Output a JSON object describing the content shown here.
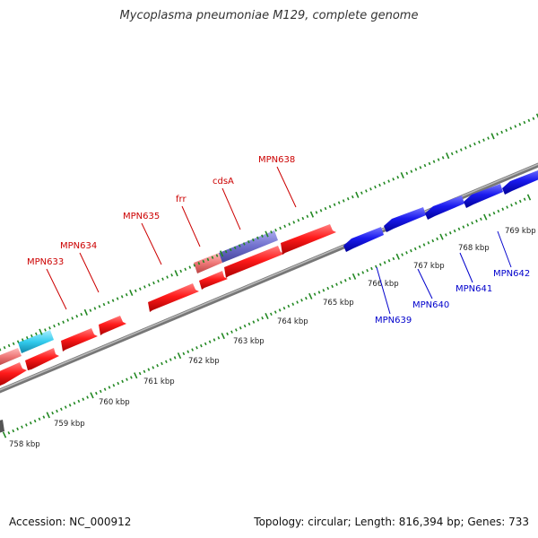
{
  "title": "Mycoplasma pneumoniae M129, complete genome",
  "footer": {
    "accession": "Accession: NC_000912",
    "summary": "Topology: circular; Length: 816,394 bp; Genes: 733"
  },
  "colors": {
    "forward_gene": "#ff1a1a",
    "reverse_gene": "#1a1aee",
    "forward_label": "#cc0000",
    "reverse_label": "#0000cc",
    "tick": "#228822",
    "backbone": "#8a8a8a",
    "rrna": "#33ccee",
    "trna": "#ee7777",
    "misc": "#6f6fcc"
  },
  "scale": {
    "unit": "kbp",
    "labels": [
      "758 kbp",
      "759 kbp",
      "760 kbp",
      "761 kbp",
      "762 kbp",
      "763 kbp",
      "764 kbp",
      "765 kbp",
      "766 kbp",
      "767 kbp",
      "768 kbp",
      "769 kbp"
    ]
  },
  "gene_labels": [
    {
      "name": "MPN633",
      "strand": "forward"
    },
    {
      "name": "MPN634",
      "strand": "forward"
    },
    {
      "name": "MPN635",
      "strand": "forward"
    },
    {
      "name": "frr",
      "strand": "forward"
    },
    {
      "name": "cdsA",
      "strand": "forward"
    },
    {
      "name": "MPN638",
      "strand": "forward"
    },
    {
      "name": "MPN639",
      "strand": "reverse"
    },
    {
      "name": "MPN640",
      "strand": "reverse"
    },
    {
      "name": "MPN641",
      "strand": "reverse"
    },
    {
      "name": "MPN642",
      "strand": "reverse"
    }
  ]
}
